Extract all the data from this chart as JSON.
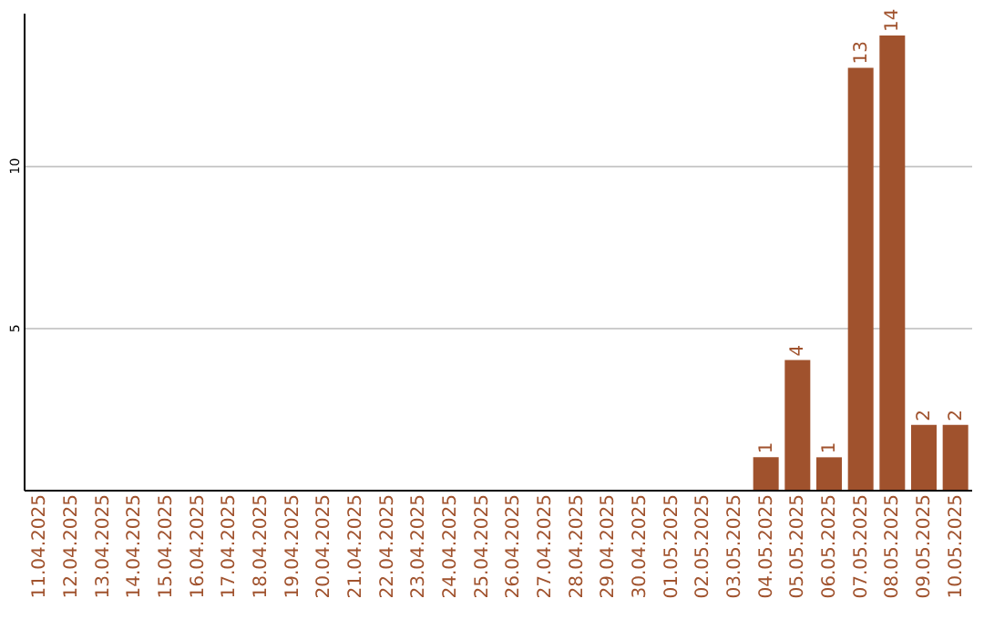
{
  "chart_data": {
    "type": "bar",
    "categories": [
      "11.04.2025",
      "12.04.2025",
      "13.04.2025",
      "14.04.2025",
      "15.04.2025",
      "16.04.2025",
      "17.04.2025",
      "18.04.2025",
      "19.04.2025",
      "20.04.2025",
      "21.04.2025",
      "22.04.2025",
      "23.04.2025",
      "24.04.2025",
      "25.04.2025",
      "26.04.2025",
      "27.04.2025",
      "28.04.2025",
      "29.04.2025",
      "30.04.2025",
      "01.05.2025",
      "02.05.2025",
      "03.05.2025",
      "04.05.2025",
      "05.05.2025",
      "06.05.2025",
      "07.05.2025",
      "08.05.2025",
      "09.05.2025",
      "10.05.2025"
    ],
    "values": [
      0,
      0,
      0,
      0,
      0,
      0,
      0,
      0,
      0,
      0,
      0,
      0,
      0,
      0,
      0,
      0,
      0,
      0,
      0,
      0,
      0,
      0,
      0,
      1,
      4,
      1,
      13,
      14,
      2,
      2
    ],
    "value_labels": [
      null,
      null,
      null,
      null,
      null,
      null,
      null,
      null,
      null,
      null,
      null,
      null,
      null,
      null,
      null,
      null,
      null,
      null,
      null,
      null,
      null,
      null,
      null,
      "1",
      "4",
      "1",
      "13",
      "14",
      "2",
      "2"
    ],
    "color": "#a0522d",
    "ylim": [
      0,
      14.7
    ],
    "yticks": [
      5,
      10
    ],
    "grid": "y"
  }
}
